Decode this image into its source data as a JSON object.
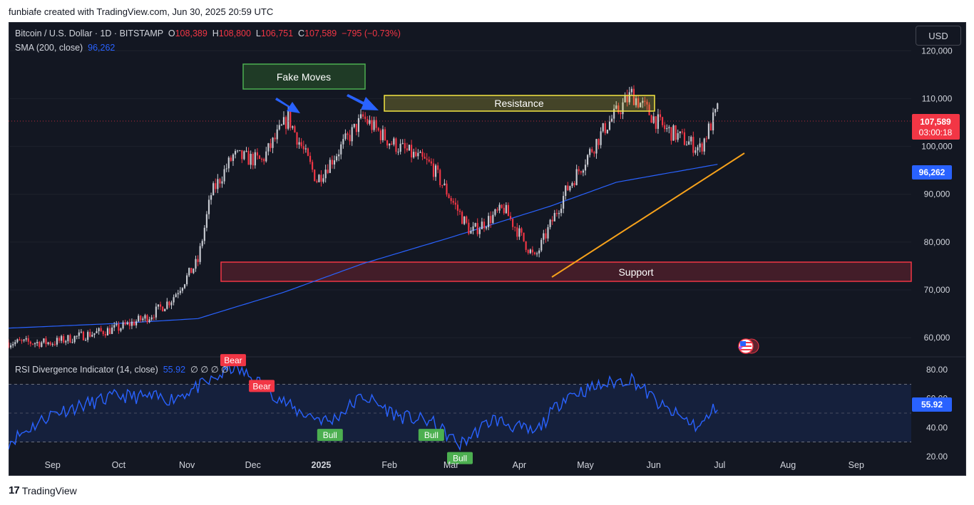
{
  "header": {
    "attribution": "funbiafe created with TradingView.com, Jun 30, 2025 20:59 UTC"
  },
  "footer": {
    "brand": "TradingView",
    "logo_text": "17"
  },
  "currency_button": "USD",
  "legend": {
    "symbol": "Bitcoin / U.S. Dollar · 1D · BITSTAMP",
    "o_label": "O",
    "o_value": "108,389",
    "h_label": "H",
    "h_value": "108,800",
    "l_label": "L",
    "l_value": "106,751",
    "c_label": "C",
    "c_value": "107,589",
    "change": "−795 (−0.73%)",
    "sma_label": "SMA (200, close)",
    "sma_value": "96,262"
  },
  "rsi_legend": {
    "label": "RSI Divergence Indicator (14, close)",
    "value": "55.92",
    "extras": "∅ ∅ ∅ ∅"
  },
  "colors": {
    "bg": "#131722",
    "up": "#c8cbd2",
    "down": "#f23645",
    "sma": "#2962ff",
    "rsi": "#2962ff",
    "support": "#f23645",
    "resistance": "#f5e642",
    "trend": "#f7a21b",
    "fake": "#4caf50",
    "arrow": "#2962ff"
  },
  "annotations": {
    "fake_moves": "Fake Moves",
    "resistance": "Resistance",
    "support": "Support",
    "bear": "Bear",
    "bull": "Bull"
  },
  "chart_data": [
    {
      "type": "candlestick",
      "title": "Bitcoin / U.S. Dollar · 1D · BITSTAMP",
      "x_ticks": [
        "Sep",
        "Oct",
        "Nov",
        "Dec",
        "2025",
        "Feb",
        "Mar",
        "Apr",
        "May",
        "Jun",
        "Jul",
        "Aug",
        "Sep"
      ],
      "y_ticks": [
        "120,000",
        "110,000",
        "100,000",
        "90,000",
        "80,000",
        "70,000",
        "60,000"
      ],
      "ylim": [
        56000,
        126000
      ],
      "last_price_label": "107,589",
      "countdown_label": "03:00:18",
      "sma_label": "96,262",
      "close_series_approx": {
        "dates": [
          "2024-08-12",
          "2024-09-01",
          "2024-09-15",
          "2024-10-01",
          "2024-10-15",
          "2024-10-25",
          "2024-11-06",
          "2024-11-12",
          "2024-11-22",
          "2024-12-05",
          "2024-12-17",
          "2024-12-30",
          "2025-01-20",
          "2025-02-01",
          "2025-02-20",
          "2025-03-10",
          "2025-03-25",
          "2025-04-08",
          "2025-04-22",
          "2025-05-10",
          "2025-05-22",
          "2025-06-05",
          "2025-06-22",
          "2025-06-30"
        ],
        "close": [
          59000,
          59000,
          60500,
          62000,
          64500,
          68000,
          76000,
          90000,
          98000,
          97000,
          106000,
          93000,
          106000,
          101000,
          96000,
          82000,
          87000,
          76500,
          90500,
          104000,
          111000,
          104000,
          99500,
          107589
        ]
      },
      "sma_200_approx": {
        "dates": [
          "2024-08-12",
          "2024-10-01",
          "2024-11-06",
          "2024-12-15",
          "2025-01-20",
          "2025-03-01",
          "2025-04-15",
          "2025-05-15",
          "2025-06-30"
        ],
        "value": [
          62000,
          63000,
          64000,
          69500,
          75500,
          81000,
          87500,
          92500,
          96262
        ]
      },
      "annotations": {
        "resistance_zone": [
          109500,
          112500
        ],
        "support_zone": [
          72000,
          76000
        ],
        "trendline": {
          "from": [
            "2025-04-08",
            73500
          ],
          "to": [
            "2025-06-30",
            100000
          ]
        }
      }
    },
    {
      "type": "line",
      "title": "RSI Divergence Indicator (14, close)",
      "y_ticks": [
        "80.00",
        "60.00",
        "40.00",
        "20.00"
      ],
      "ylim": [
        15,
        85
      ],
      "band": [
        30,
        70
      ],
      "last_value_label": "55.92",
      "signals": [
        {
          "label": "Bear",
          "date": "2024-11-22"
        },
        {
          "label": "Bear",
          "date": "2024-12-05"
        },
        {
          "label": "Bull",
          "date": "2025-01-05"
        },
        {
          "label": "Bull",
          "date": "2025-02-20"
        },
        {
          "label": "Bull",
          "date": "2025-03-05"
        }
      ]
    }
  ]
}
